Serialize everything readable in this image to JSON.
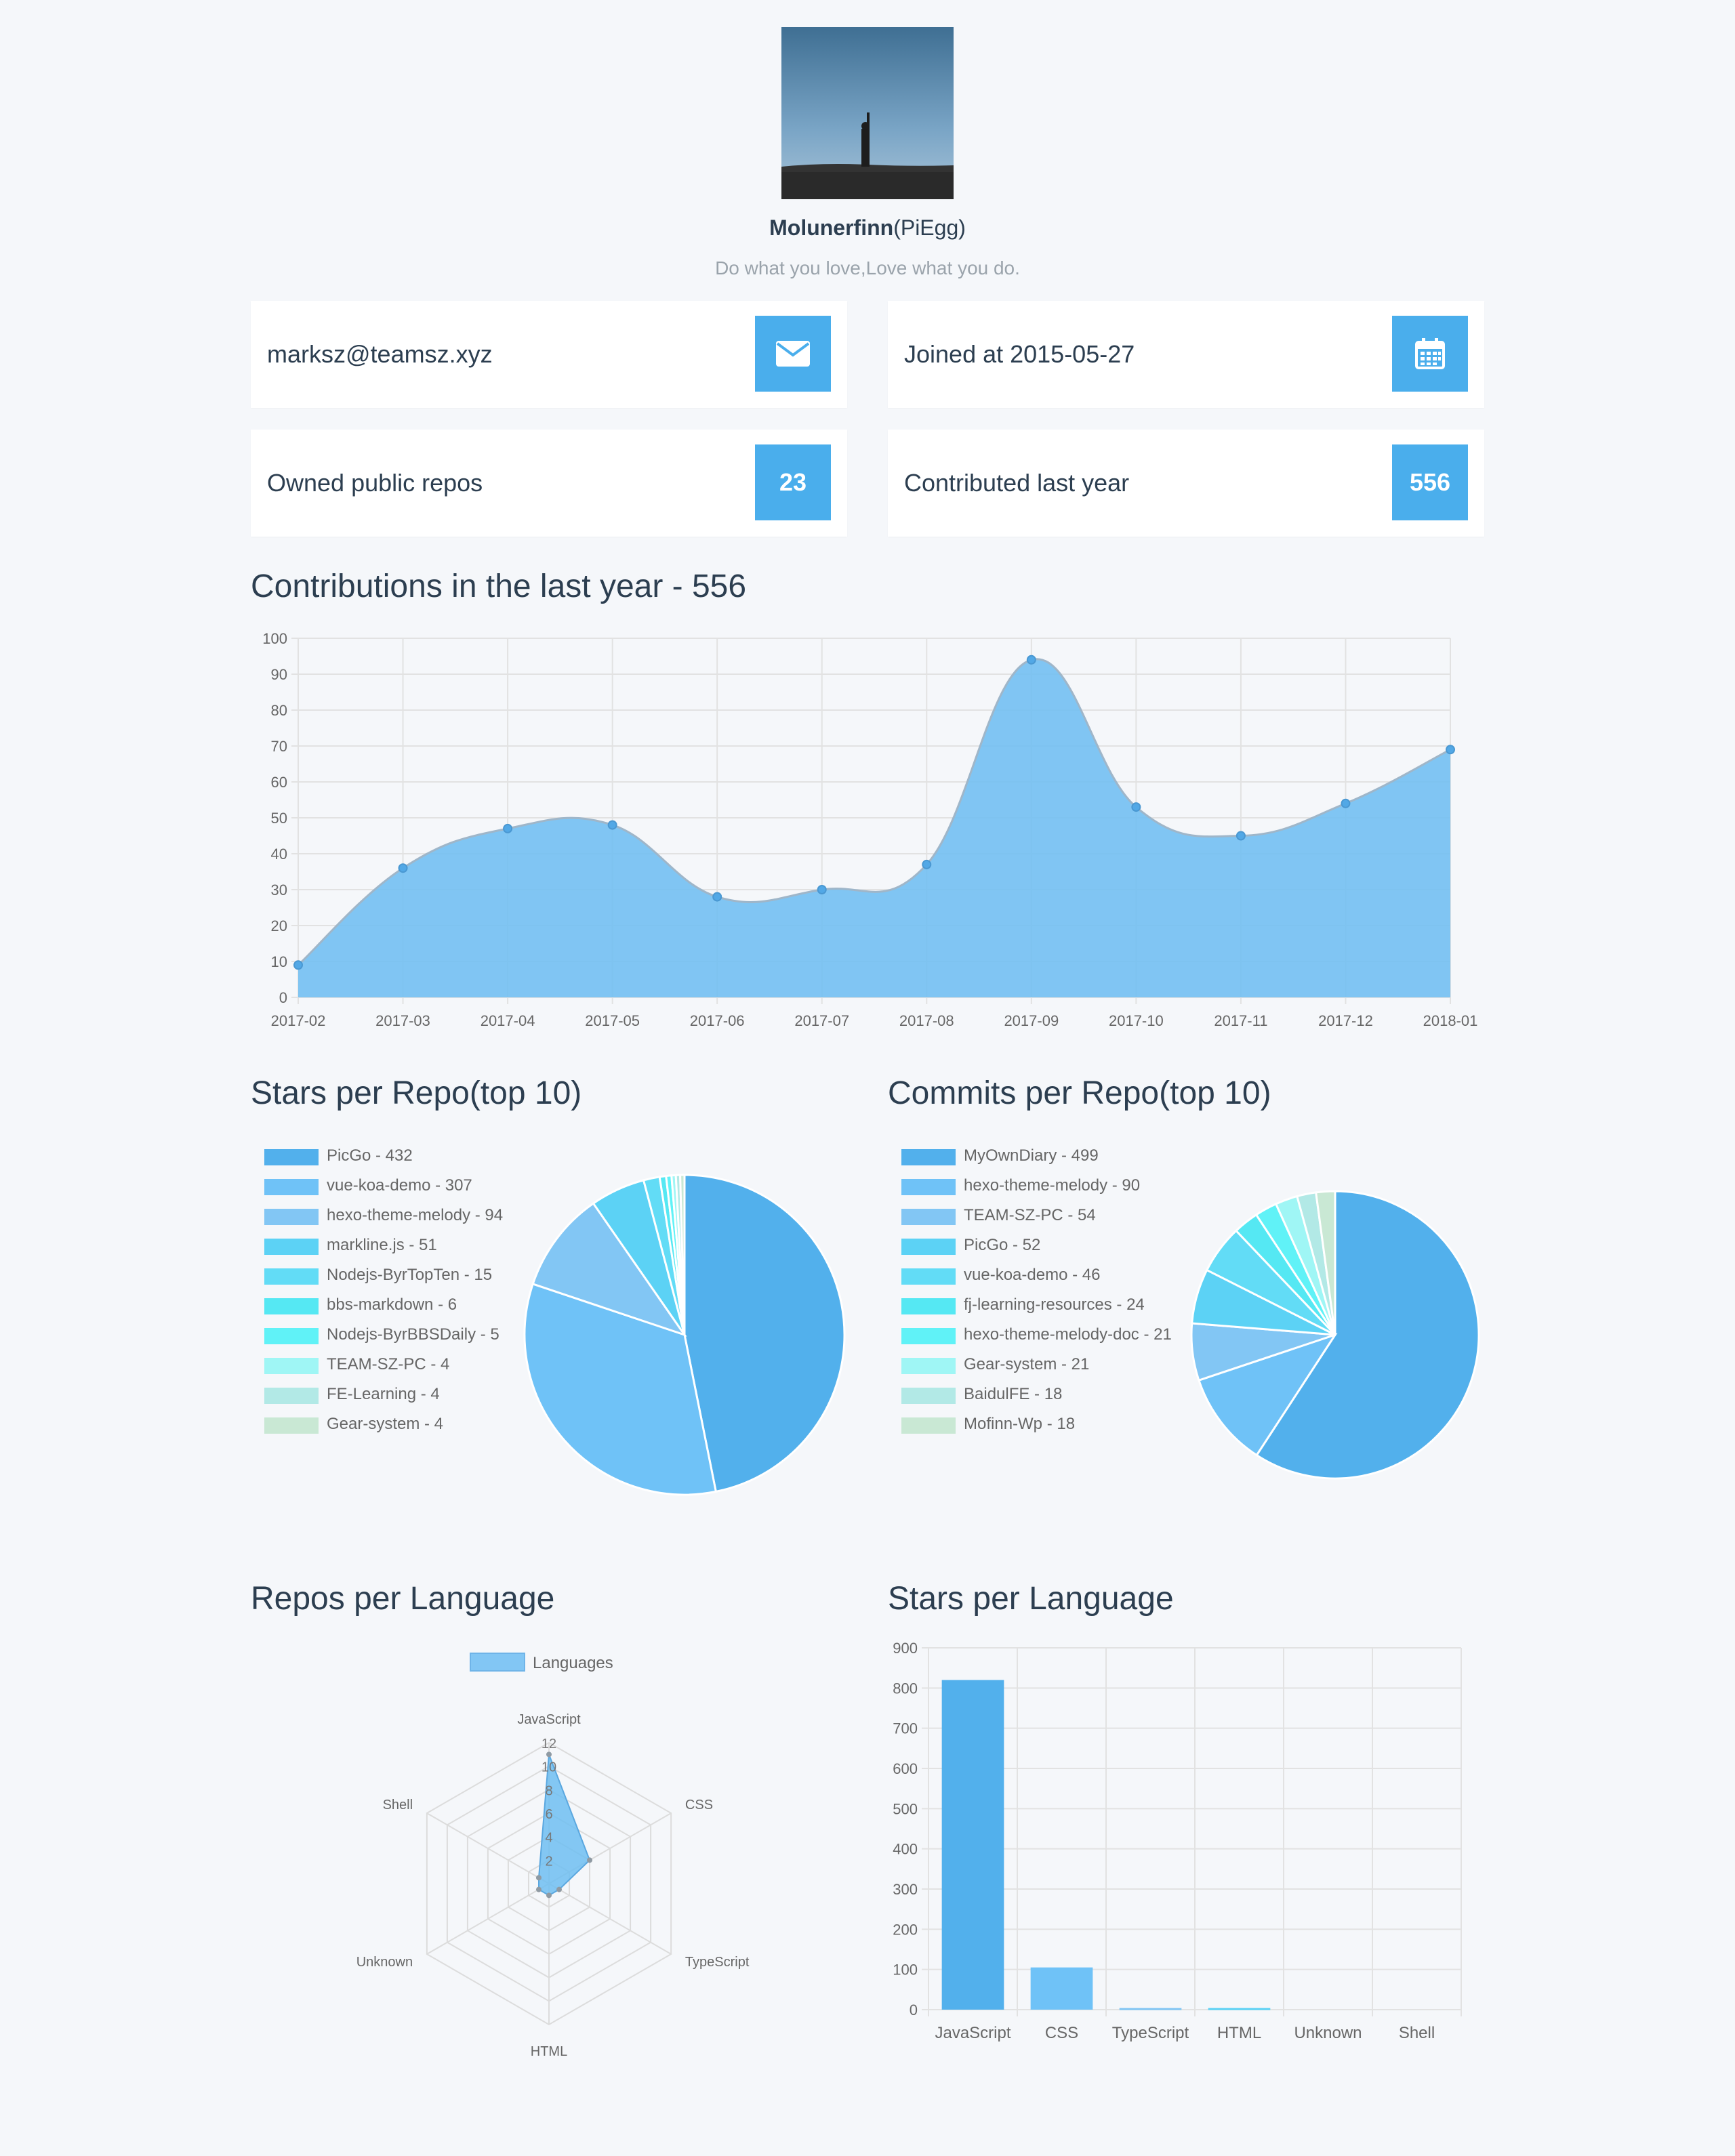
{
  "profile": {
    "name": "Molunerfinn",
    "nickname": "(PiEgg)",
    "bio": "Do what you love,Love what you do."
  },
  "cards": {
    "email": "marksz@teamsz.xyz",
    "email_icon": "envelope-icon",
    "joined": "Joined at 2015-05-27",
    "joined_icon": "calendar-icon",
    "repos_label": "Owned public repos",
    "repos_value": "23",
    "contrib_label": "Contributed last year",
    "contrib_value": "556"
  },
  "sections": {
    "contributions": "Contributions in the last year - 556",
    "stars_per_repo": "Stars per Repo(top 10)",
    "commits_per_repo": "Commits per Repo(top 10)",
    "repos_per_language": "Repos per Language",
    "stars_per_language": "Stars per Language"
  },
  "colors": {
    "accent": "#4aaeec",
    "palette": [
      "#52b0ec",
      "#6fc2f7",
      "#82c6f4",
      "#5cd2f5",
      "#62dcf6",
      "#55e8f3",
      "#60f2f7",
      "#9ff6f5",
      "#b2e9e6",
      "#c9e8d4"
    ]
  },
  "chart_data": [
    {
      "type": "area",
      "title": "Contributions in the last year - 556",
      "x": [
        "2017-02",
        "2017-03",
        "2017-04",
        "2017-05",
        "2017-06",
        "2017-07",
        "2017-08",
        "2017-09",
        "2017-10",
        "2017-11",
        "2017-12",
        "2018-01"
      ],
      "values": [
        9,
        36,
        47,
        48,
        28,
        30,
        37,
        94,
        53,
        45,
        54,
        69
      ],
      "ylim": [
        0,
        100
      ],
      "yticks": [
        0,
        10,
        20,
        30,
        40,
        50,
        60,
        70,
        80,
        90,
        100
      ],
      "grid": true
    },
    {
      "type": "pie",
      "title": "Stars per Repo(top 10)",
      "legend": "left",
      "labels": [
        "PicGo - 432",
        "vue-koa-demo - 307",
        "hexo-theme-melody - 94",
        "markline.js - 51",
        "Nodejs-ByrTopTen - 15",
        "bbs-markdown - 6",
        "Nodejs-ByrBBSDaily - 5",
        "TEAM-SZ-PC - 4",
        "FE-Learning - 4",
        "Gear-system - 4"
      ],
      "values": [
        432,
        307,
        94,
        51,
        15,
        6,
        5,
        4,
        4,
        4
      ]
    },
    {
      "type": "pie",
      "title": "Commits per Repo(top 10)",
      "legend": "left",
      "labels": [
        "MyOwnDiary - 499",
        "hexo-theme-melody - 90",
        "TEAM-SZ-PC - 54",
        "PicGo - 52",
        "vue-koa-demo - 46",
        "fj-learning-resources - 24",
        "hexo-theme-melody-doc - 21",
        "Gear-system - 21",
        "BaidulFE - 18",
        "Mofinn-Wp - 18"
      ],
      "values": [
        499,
        90,
        54,
        52,
        46,
        24,
        21,
        21,
        18,
        18
      ]
    },
    {
      "type": "radar",
      "title": "Repos per Language",
      "legend": "top",
      "series_name": "Languages",
      "axes": [
        "JavaScript",
        "CSS",
        "TypeScript",
        "HTML",
        "Unknown",
        "Shell"
      ],
      "values": [
        11,
        4,
        1,
        1,
        1,
        1
      ],
      "rlim": [
        0,
        12
      ],
      "rticks": [
        2,
        4,
        6,
        8,
        10,
        12
      ]
    },
    {
      "type": "bar",
      "title": "Stars per Language",
      "categories": [
        "JavaScript",
        "CSS",
        "TypeScript",
        "HTML",
        "Unknown",
        "Shell"
      ],
      "values": [
        820,
        105,
        4,
        4,
        0,
        0
      ],
      "ylim": [
        0,
        900
      ],
      "yticks": [
        0,
        100,
        200,
        300,
        400,
        500,
        600,
        700,
        800,
        900
      ],
      "grid": true
    }
  ]
}
